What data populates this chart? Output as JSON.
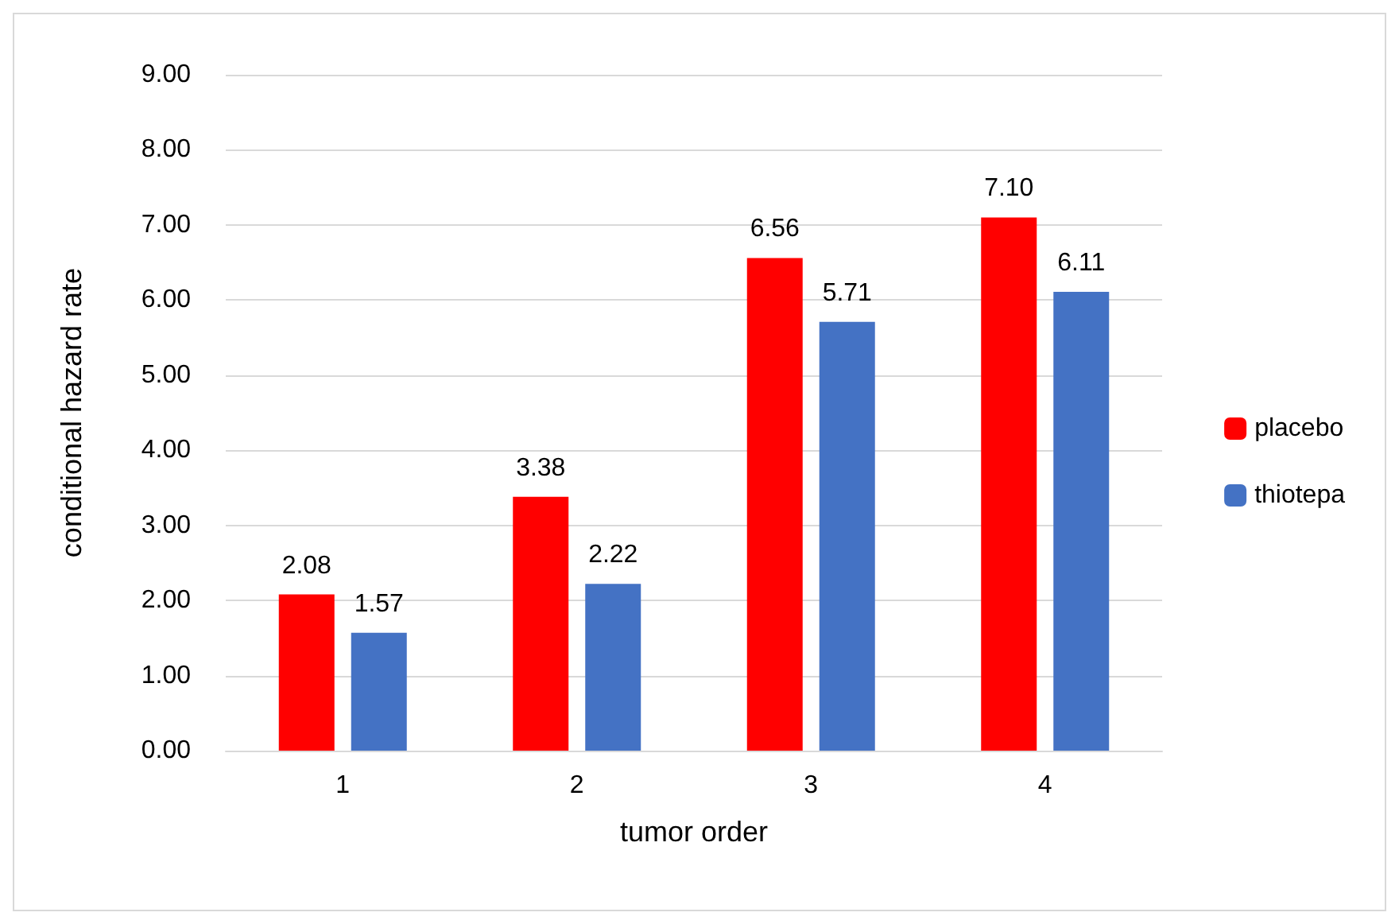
{
  "chart_data": {
    "type": "bar",
    "xlabel": "tumor order",
    "ylabel": "conditional hazard rate",
    "categories": [
      "1",
      "2",
      "3",
      "4"
    ],
    "series": [
      {
        "name": "placebo",
        "color": "#ff0000",
        "values": [
          2.08,
          3.38,
          6.56,
          7.1
        ],
        "value_labels": [
          "2.08",
          "3.38",
          "6.56",
          "7.10"
        ]
      },
      {
        "name": "thiotepa",
        "color": "#4472c4",
        "values": [
          1.57,
          2.22,
          5.71,
          6.11
        ],
        "value_labels": [
          "1.57",
          "2.22",
          "5.71",
          "6.11"
        ]
      }
    ],
    "ylim": [
      0,
      9
    ],
    "yticks": [
      {
        "value": 0,
        "label": "0.00"
      },
      {
        "value": 1,
        "label": "1.00"
      },
      {
        "value": 2,
        "label": "2.00"
      },
      {
        "value": 3,
        "label": "3.00"
      },
      {
        "value": 4,
        "label": "4.00"
      },
      {
        "value": 5,
        "label": "5.00"
      },
      {
        "value": 6,
        "label": "6.00"
      },
      {
        "value": 7,
        "label": "7.00"
      },
      {
        "value": 8,
        "label": "8.00"
      },
      {
        "value": 9,
        "label": "9.00"
      }
    ],
    "grid": "y",
    "legend": "right"
  }
}
